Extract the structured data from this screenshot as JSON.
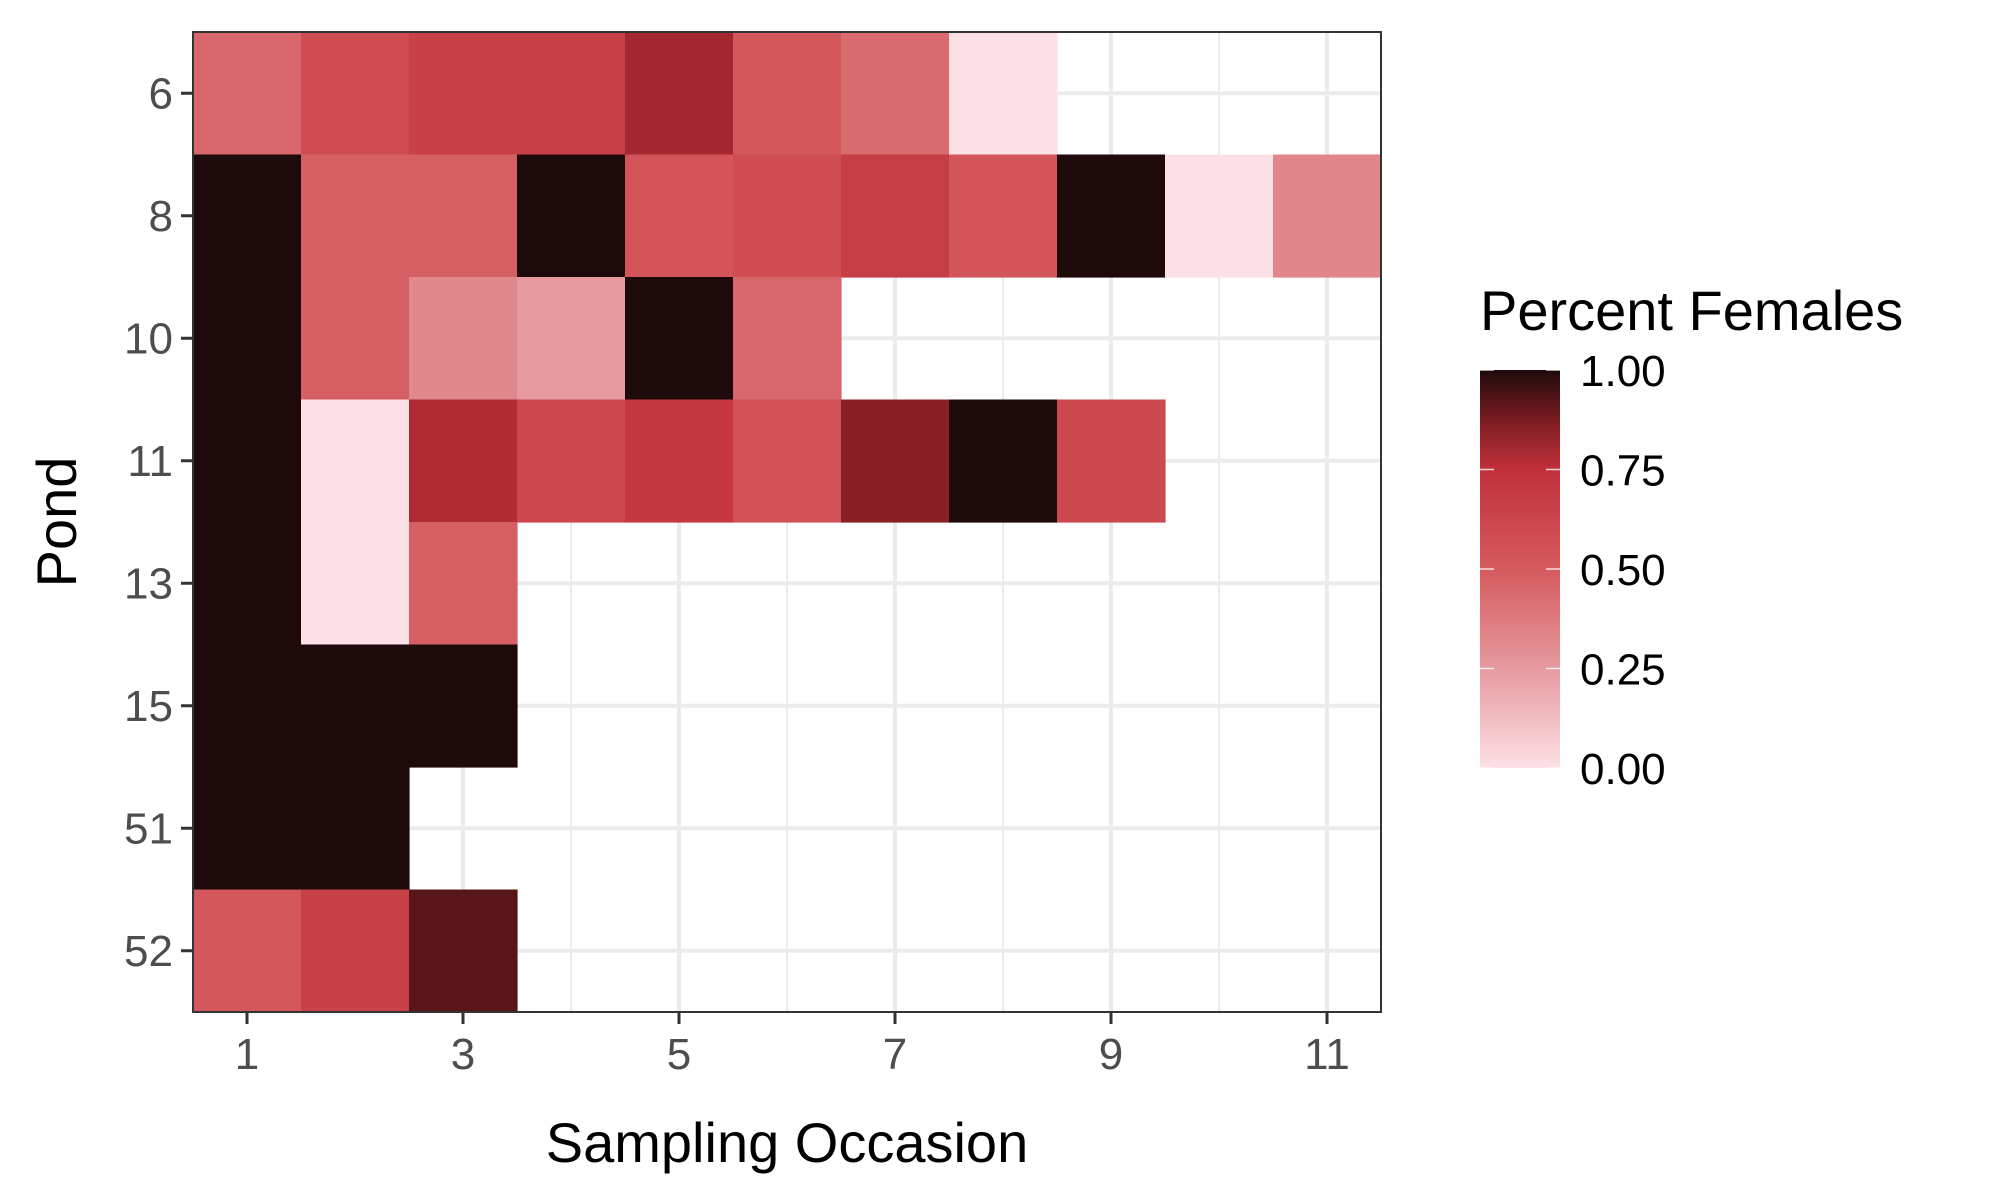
{
  "chart_data": {
    "type": "heatmap",
    "xlabel": "Sampling Occasion",
    "ylabel": "Pond",
    "x_ticks": [
      "1",
      "3",
      "5",
      "7",
      "9",
      "11"
    ],
    "xlim": [
      0.5,
      11.5
    ],
    "ponds": [
      "6",
      "8",
      "10",
      "11",
      "13",
      "15",
      "51",
      "52"
    ],
    "grid": true,
    "legend": {
      "title": "Percent Females",
      "placement": "right",
      "ticks": [
        "1.00",
        "0.75",
        "0.50",
        "0.25",
        "0.00"
      ],
      "tick_values": [
        1.0,
        0.75,
        0.5,
        0.25,
        0.0
      ]
    },
    "color_stops": [
      {
        "v": 0.0,
        "color": "#fce0e5"
      },
      {
        "v": 0.25,
        "color": "#e69a9e"
      },
      {
        "v": 0.5,
        "color": "#d55a5e"
      },
      {
        "v": 0.75,
        "color": "#c1303a"
      },
      {
        "v": 0.875,
        "color": "#7a1c20"
      },
      {
        "v": 1.0,
        "color": "#1e0a0b"
      }
    ],
    "cells": [
      {
        "pond": "6",
        "values": [
          0.45,
          0.58,
          0.65,
          0.65,
          0.8,
          0.52,
          0.43,
          0.0
        ]
      },
      {
        "pond": "8",
        "values": [
          1.0,
          0.48,
          0.48,
          1.0,
          0.53,
          0.58,
          0.67,
          0.53,
          1.0,
          0.0,
          0.33
        ]
      },
      {
        "pond": "10",
        "values": [
          1.0,
          0.48,
          0.32,
          0.25,
          1.0,
          0.45
        ]
      },
      {
        "pond": "11",
        "values": [
          1.0,
          0.0,
          0.78,
          0.62,
          0.7,
          0.55,
          0.85,
          1.0,
          0.6
        ]
      },
      {
        "pond": "13",
        "values": [
          1.0,
          0.0,
          0.48
        ]
      },
      {
        "pond": "15",
        "values": [
          1.0,
          1.0,
          1.0
        ]
      },
      {
        "pond": "51",
        "values": [
          1.0,
          1.0
        ]
      },
      {
        "pond": "52",
        "values": [
          0.52,
          0.65,
          0.92
        ]
      }
    ]
  }
}
